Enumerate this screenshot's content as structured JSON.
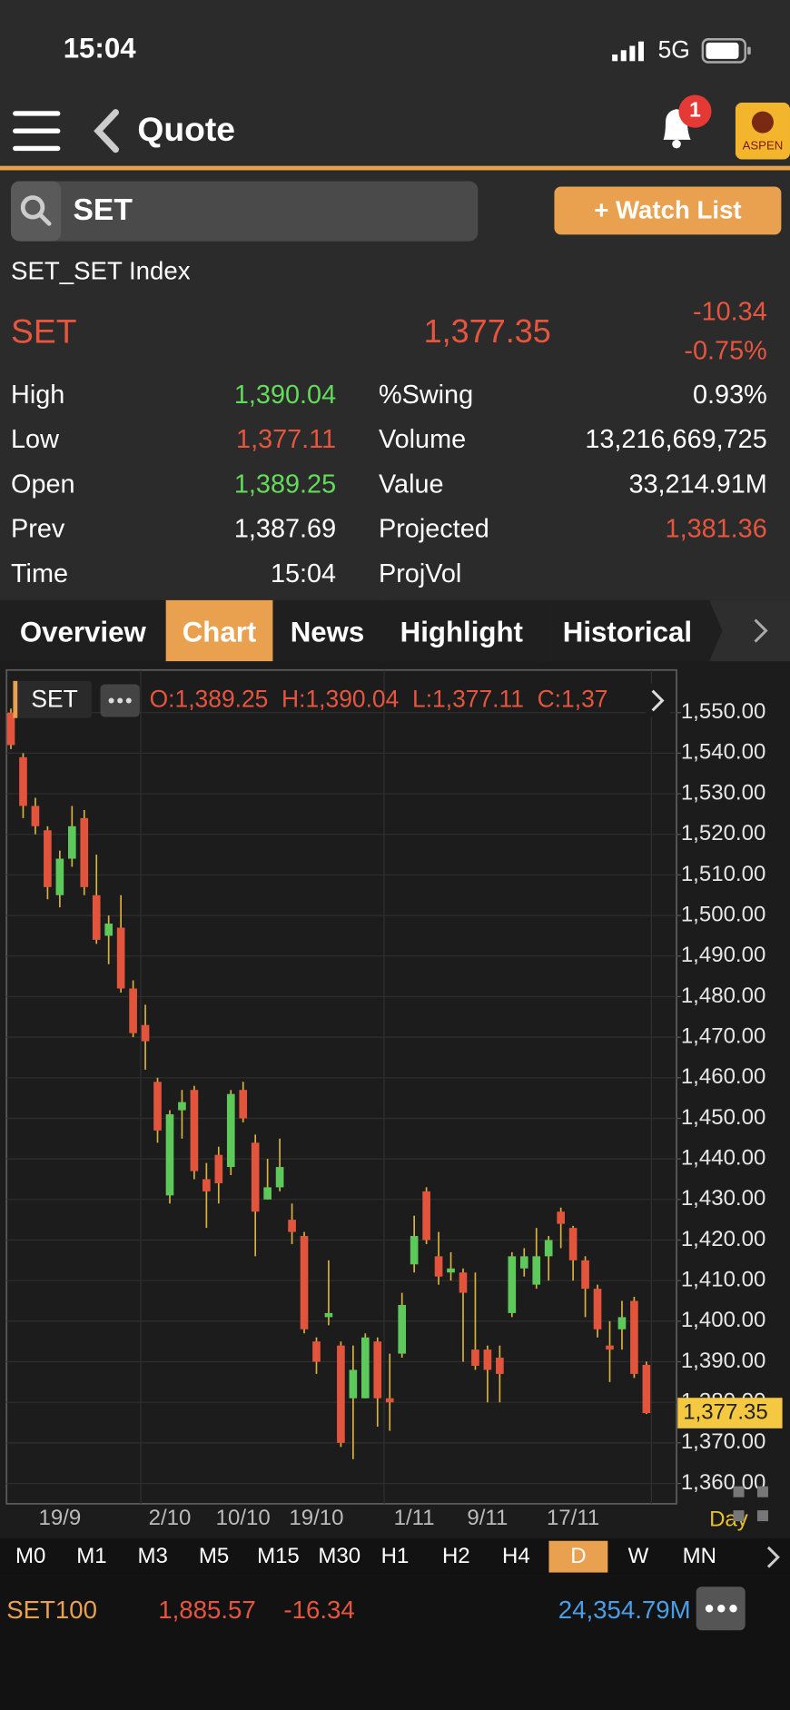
{
  "status_bar": {
    "time": "15:04",
    "network": "5G"
  },
  "header": {
    "title": "Quote",
    "notification_count": "1",
    "logo": "ASPEN"
  },
  "search": {
    "query": "SET",
    "watch_list_button": "+ Watch List"
  },
  "quote": {
    "name": "SET_SET Index",
    "symbol": "SET",
    "last": "1,377.35",
    "change": "-10.34",
    "change_pct": "-0.75%",
    "stats_left": [
      {
        "label": "High",
        "value": "1,390.04",
        "color": "#63dc5a"
      },
      {
        "label": "Low",
        "value": "1,377.11",
        "color": "#e8553e"
      },
      {
        "label": "Open",
        "value": "1,389.25",
        "color": "#63dc5a"
      },
      {
        "label": "Prev",
        "value": "1,387.69",
        "color": "#ffffff"
      },
      {
        "label": "Time",
        "value": "15:04",
        "color": "#ffffff"
      }
    ],
    "stats_right": [
      {
        "label": "%Swing",
        "value": "0.93%",
        "color": "#ffffff"
      },
      {
        "label": "Volume",
        "value": "13,216,669,725",
        "color": "#ffffff"
      },
      {
        "label": "Value",
        "value": "33,214.91M",
        "color": "#ffffff"
      },
      {
        "label": "Projected",
        "value": "1,381.36",
        "color": "#e8553e"
      },
      {
        "label": "ProjVol",
        "color": "#ffffff"
      }
    ]
  },
  "tabs": [
    "Overview",
    "Chart",
    "News",
    "Highlight",
    "Historical"
  ],
  "active_tab": 1,
  "chart_data": {
    "type": "candlestick",
    "symbol": "SET",
    "ohlc_label": "O:1,389.25  H:1,390.04  L:1,377.11  C:1,37",
    "categories": [
      null,
      null,
      null,
      null,
      "19/9",
      null,
      null,
      null,
      null,
      null,
      null,
      null,
      null,
      "2/10",
      null,
      null,
      null,
      null,
      null,
      "10/10",
      null,
      null,
      null,
      null,
      null,
      "19/10",
      null,
      null,
      null,
      null,
      null,
      null,
      null,
      "1/11",
      null,
      null,
      null,
      null,
      null,
      "9/11",
      null,
      null,
      null,
      null,
      null,
      null,
      "17/11",
      null,
      null,
      null,
      null,
      null,
      null
    ],
    "open": [
      1550,
      1539,
      1527,
      1521,
      1505,
      1514,
      1524,
      1505,
      1495,
      1497,
      1482,
      1473,
      1459,
      1431,
      1452,
      1457,
      1435,
      1441,
      1438,
      1457,
      1444,
      1430,
      1433,
      1425,
      1421,
      1395,
      1401,
      1394,
      1381,
      1381,
      1395,
      1381,
      1392,
      1414,
      1432,
      1416,
      1412,
      1412,
      1393,
      1393,
      1391,
      1402,
      1413,
      1409,
      1416,
      1427,
      1423,
      1415,
      1408,
      1394,
      1398,
      1405,
      1389.25
    ],
    "high": [
      1551,
      1540,
      1529,
      1522,
      1516,
      1527,
      1526,
      1515,
      1500,
      1505,
      1484,
      1478,
      1460,
      1452,
      1457,
      1458,
      1439,
      1443,
      1457,
      1459,
      1446,
      1440,
      1445,
      1429,
      1422,
      1396,
      1415,
      1395,
      1394,
      1397,
      1396,
      1392,
      1407,
      1426,
      1433,
      1422,
      1417,
      1413,
      1412,
      1394,
      1394,
      1417,
      1418,
      1423,
      1421,
      1428,
      1423.5,
      1416,
      1409,
      1400,
      1405,
      1406,
      1390.04
    ],
    "low": [
      1541,
      1524,
      1520,
      1504,
      1502,
      1512,
      1505,
      1493,
      1488,
      1481,
      1470,
      1462,
      1444,
      1429,
      1445,
      1435,
      1423,
      1429,
      1436,
      1449,
      1416,
      1430,
      1432,
      1419,
      1397,
      1387,
      1399,
      1369,
      1366,
      1381,
      1374,
      1373,
      1391,
      1412,
      1419,
      1409,
      1410,
      1390,
      1388,
      1380,
      1380,
      1401,
      1411,
      1408,
      1410,
      1418,
      1410,
      1401,
      1396,
      1385,
      1393,
      1386,
      1377.11
    ],
    "close": [
      1542,
      1527,
      1522,
      1507,
      1514,
      1522,
      1507,
      1494,
      1498,
      1482,
      1471,
      1469,
      1447,
      1451,
      1454,
      1437,
      1432,
      1434,
      1456,
      1450,
      1427,
      1433,
      1438,
      1422,
      1398,
      1390,
      1402,
      1370,
      1388,
      1396,
      1381,
      1380,
      1404,
      1421,
      1420,
      1411,
      1413,
      1407,
      1389,
      1388,
      1387,
      1416,
      1416,
      1416,
      1420,
      1424,
      1415,
      1408,
      1398,
      1393,
      1401,
      1387,
      1377.35
    ],
    "up_color": "#5cc95a",
    "down_color": "#e2553c",
    "wick_color": "#d8b23c",
    "ylim": [
      1355,
      1560.5
    ],
    "yticks": [
      {
        "value": 1360,
        "label": "1,360.00"
      },
      {
        "value": 1370,
        "label": "1,370.00"
      },
      {
        "value": 1380,
        "label": "1,380.00"
      },
      {
        "value": 1390,
        "label": "1,390.00"
      },
      {
        "value": 1400,
        "label": "1,400.00"
      },
      {
        "value": 1410,
        "label": "1,410.00"
      },
      {
        "value": 1420,
        "label": "1,420.00"
      },
      {
        "value": 1430,
        "label": "1,430.00"
      },
      {
        "value": 1440,
        "label": "1,440.00"
      },
      {
        "value": 1450,
        "label": "1,450.00"
      },
      {
        "value": 1460,
        "label": "1,460.00"
      },
      {
        "value": 1470,
        "label": "1,470.00"
      },
      {
        "value": 1480,
        "label": "1,480.00"
      },
      {
        "value": 1490,
        "label": "1,490.00"
      },
      {
        "value": 1500,
        "label": "1,500.00"
      },
      {
        "value": 1510,
        "label": "1,510.00"
      },
      {
        "value": 1520,
        "label": "1,520.00"
      },
      {
        "value": 1530,
        "label": "1,530.00"
      },
      {
        "value": 1540,
        "label": "1,540.00"
      },
      {
        "value": 1550,
        "label": "1,550.00"
      }
    ],
    "grid": true,
    "last_price": {
      "value": 1377.35,
      "label": "1,377.35"
    },
    "period_label": "Day"
  },
  "timeframes": [
    "M0",
    "M1",
    "M3",
    "M5",
    "M15",
    "M30",
    "H1",
    "H2",
    "H4",
    "D",
    "W",
    "MN"
  ],
  "active_timeframe": 9,
  "footer": {
    "symbol": "SET100",
    "last": "1,885.57",
    "change": "-16.34",
    "value": "24,354.79M"
  }
}
